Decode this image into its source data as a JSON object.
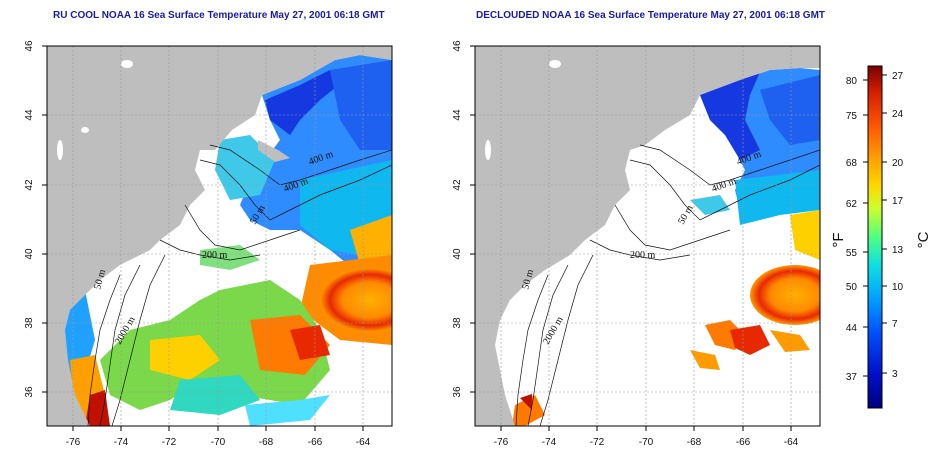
{
  "panels": [
    {
      "title": "RU COOL NOAA 16 Sea Surface Temperature May 27, 2001 06:18 GMT",
      "type": "composite"
    },
    {
      "title": "DECLOUDED NOAA 16 Sea Surface Temperature May 27, 2001 06:18 GMT",
      "type": "declouded"
    }
  ],
  "axes": {
    "x_ticks": [
      "-76",
      "-74",
      "-72",
      "-70",
      "-68",
      "-66",
      "-64"
    ],
    "y_ticks": [
      "36",
      "38",
      "40",
      "42",
      "44",
      "46"
    ],
    "x_range": [
      -77,
      -63
    ],
    "y_range": [
      35,
      46
    ]
  },
  "contours": {
    "labels": [
      "50 m",
      "200 m",
      "2000 m",
      "400 m",
      "400 m",
      "50 m"
    ]
  },
  "colorbar": {
    "fahrenheit_ticks": [
      "80",
      "75",
      "68",
      "62",
      "55",
      "50",
      "44",
      "37"
    ],
    "celsius_ticks": [
      "27",
      "24",
      "20",
      "17",
      "13",
      "10",
      "7",
      "3"
    ],
    "fahrenheit_unit": "°F",
    "celsius_unit": "°C",
    "colors": [
      "#7a0000",
      "#d62000",
      "#ff5a00",
      "#ffa000",
      "#ffd800",
      "#c8ff30",
      "#50ff80",
      "#10e0e0",
      "#00a8ff",
      "#0050ff",
      "#0010c8",
      "#000080"
    ]
  },
  "colors": {
    "land": "#bebebe",
    "ocean_bg": "#ffffff",
    "title": "#1a1aa6"
  }
}
